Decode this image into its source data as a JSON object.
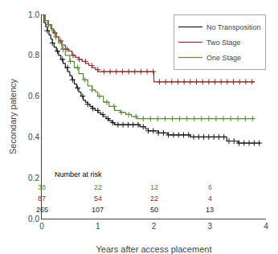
{
  "chart_data": {
    "type": "line",
    "line_style": "step",
    "marker": "+",
    "xlabel": "Years after access placement",
    "ylabel": "Secondary patency",
    "xlim": [
      0,
      4
    ],
    "ylim": [
      0.0,
      1.0
    ],
    "xticks": [
      0,
      1,
      2,
      3,
      4
    ],
    "yticks": [
      {
        "value": 0.0,
        "label": "0.0"
      },
      0.2,
      0.4,
      0.6,
      0.8,
      {
        "value": 1.0,
        "label": "1.0"
      }
    ],
    "grid": false,
    "legend": "upper right",
    "at_risk_label": "Number at risk",
    "at_risk_x": [
      0,
      1,
      2,
      3
    ],
    "series": [
      {
        "name": "No Transposition",
        "color": "#1a1a1a",
        "x": [
          0,
          0.04,
          0.07,
          0.1,
          0.13,
          0.16,
          0.19,
          0.22,
          0.26,
          0.3,
          0.34,
          0.38,
          0.42,
          0.46,
          0.5,
          0.54,
          0.58,
          0.62,
          0.66,
          0.7,
          0.74,
          0.78,
          0.82,
          0.86,
          0.9,
          0.95,
          1.0,
          1.05,
          1.1,
          1.15,
          1.2,
          1.25,
          1.3,
          1.35,
          1.4,
          1.45,
          1.5,
          1.55,
          1.6,
          1.65,
          1.7,
          1.75,
          1.8,
          1.85,
          1.9,
          1.95,
          2.0,
          2.08,
          2.15,
          2.25,
          2.35,
          2.45,
          2.55,
          2.65,
          2.75,
          2.8,
          2.85,
          2.9,
          3.0,
          3.1,
          3.3,
          3.5,
          3.7,
          3.9
        ],
        "values": [
          1.0,
          0.96,
          0.94,
          0.92,
          0.9,
          0.88,
          0.86,
          0.84,
          0.82,
          0.8,
          0.78,
          0.76,
          0.74,
          0.72,
          0.7,
          0.68,
          0.66,
          0.64,
          0.62,
          0.6,
          0.58,
          0.57,
          0.56,
          0.55,
          0.54,
          0.53,
          0.52,
          0.51,
          0.5,
          0.49,
          0.48,
          0.47,
          0.46,
          0.46,
          0.46,
          0.46,
          0.46,
          0.46,
          0.46,
          0.46,
          0.46,
          0.45,
          0.45,
          0.44,
          0.43,
          0.43,
          0.43,
          0.42,
          0.42,
          0.41,
          0.41,
          0.41,
          0.41,
          0.4,
          0.4,
          0.4,
          0.4,
          0.4,
          0.4,
          0.4,
          0.38,
          0.37,
          0.37,
          0.37
        ],
        "censored_x": [
          0.1,
          0.19,
          0.28,
          0.37,
          0.46,
          0.55,
          0.64,
          0.73,
          0.82,
          0.91,
          1.0,
          1.09,
          1.18,
          1.27,
          1.36,
          1.45,
          1.54,
          1.63,
          1.72,
          1.81,
          1.9,
          1.99,
          2.08,
          2.17,
          2.26,
          2.35,
          2.44,
          2.53,
          2.62,
          2.71,
          2.8,
          2.89,
          2.98,
          3.07,
          3.16,
          3.25,
          3.34,
          3.43,
          3.52,
          3.61,
          3.7,
          3.79,
          3.88
        ],
        "censored_values": [
          0.92,
          0.86,
          0.82,
          0.78,
          0.74,
          0.68,
          0.64,
          0.6,
          0.56,
          0.54,
          0.53,
          0.51,
          0.49,
          0.47,
          0.46,
          0.46,
          0.46,
          0.46,
          0.46,
          0.45,
          0.43,
          0.43,
          0.42,
          0.42,
          0.41,
          0.41,
          0.41,
          0.41,
          0.41,
          0.4,
          0.4,
          0.4,
          0.4,
          0.4,
          0.4,
          0.4,
          0.38,
          0.38,
          0.37,
          0.37,
          0.37,
          0.37,
          0.37
        ],
        "at_risk": [
          265,
          107,
          50,
          13
        ]
      },
      {
        "name": "Two Stage",
        "color": "#8B3030",
        "x": [
          0,
          0.06,
          0.11,
          0.16,
          0.21,
          0.26,
          0.31,
          0.36,
          0.42,
          0.48,
          0.54,
          0.6,
          0.66,
          0.72,
          0.78,
          0.84,
          0.9,
          0.96,
          1.0,
          1.1,
          1.2,
          1.3,
          1.4,
          1.5,
          1.6,
          1.7,
          1.8,
          1.9,
          2.0,
          2.15,
          2.3,
          2.5,
          2.7,
          2.9,
          3.0,
          3.2,
          3.4,
          3.6,
          3.8
        ],
        "values": [
          1.0,
          0.97,
          0.95,
          0.93,
          0.91,
          0.89,
          0.87,
          0.85,
          0.83,
          0.82,
          0.8,
          0.79,
          0.78,
          0.77,
          0.76,
          0.75,
          0.74,
          0.73,
          0.72,
          0.72,
          0.72,
          0.72,
          0.72,
          0.72,
          0.72,
          0.72,
          0.72,
          0.72,
          0.67,
          0.67,
          0.67,
          0.67,
          0.67,
          0.67,
          0.67,
          0.67,
          0.67,
          0.67,
          0.67
        ],
        "censored_x": [
          0.12,
          0.23,
          0.34,
          0.45,
          0.56,
          0.67,
          0.78,
          0.89,
          1.0,
          1.11,
          1.22,
          1.33,
          1.44,
          1.55,
          1.66,
          1.77,
          1.88,
          1.99,
          2.1,
          2.21,
          2.32,
          2.43,
          2.54,
          2.65,
          2.76,
          2.87,
          2.98,
          3.09,
          3.2,
          3.31,
          3.42,
          3.53,
          3.64,
          3.75
        ],
        "censored_values": [
          0.95,
          0.91,
          0.87,
          0.83,
          0.8,
          0.78,
          0.77,
          0.75,
          0.73,
          0.72,
          0.72,
          0.72,
          0.72,
          0.72,
          0.72,
          0.72,
          0.72,
          0.72,
          0.67,
          0.67,
          0.67,
          0.67,
          0.67,
          0.67,
          0.67,
          0.67,
          0.67,
          0.67,
          0.67,
          0.67,
          0.67,
          0.67,
          0.67,
          0.67
        ],
        "at_risk": [
          87,
          54,
          22,
          4
        ]
      },
      {
        "name": "One Stage",
        "color": "#5A8A3A",
        "x": [
          0,
          0.06,
          0.12,
          0.18,
          0.24,
          0.3,
          0.36,
          0.42,
          0.5,
          0.58,
          0.66,
          0.74,
          0.82,
          0.9,
          0.96,
          1.0,
          1.1,
          1.2,
          1.3,
          1.4,
          1.5,
          1.6,
          1.7,
          1.8,
          2.0,
          2.3,
          2.6,
          3.0,
          3.4,
          3.8
        ],
        "values": [
          1.0,
          0.97,
          0.95,
          0.92,
          0.89,
          0.86,
          0.83,
          0.8,
          0.77,
          0.74,
          0.71,
          0.68,
          0.65,
          0.63,
          0.62,
          0.6,
          0.57,
          0.55,
          0.53,
          0.52,
          0.51,
          0.5,
          0.49,
          0.49,
          0.49,
          0.49,
          0.49,
          0.49,
          0.49,
          0.49
        ],
        "censored_x": [
          0.12,
          0.25,
          0.38,
          0.51,
          0.64,
          0.77,
          0.9,
          1.03,
          1.16,
          1.29,
          1.42,
          1.55,
          1.68,
          1.81,
          1.94,
          2.07,
          2.2,
          2.33,
          2.46,
          2.59,
          2.72,
          2.85,
          2.98,
          3.11,
          3.24,
          3.37,
          3.5,
          3.63,
          3.76
        ],
        "censored_values": [
          0.95,
          0.89,
          0.83,
          0.77,
          0.74,
          0.68,
          0.63,
          0.6,
          0.57,
          0.55,
          0.52,
          0.51,
          0.5,
          0.49,
          0.49,
          0.49,
          0.49,
          0.49,
          0.49,
          0.49,
          0.49,
          0.49,
          0.49,
          0.49,
          0.49,
          0.49,
          0.49,
          0.49,
          0.49
        ],
        "at_risk": [
          38,
          22,
          12,
          6
        ]
      }
    ]
  }
}
